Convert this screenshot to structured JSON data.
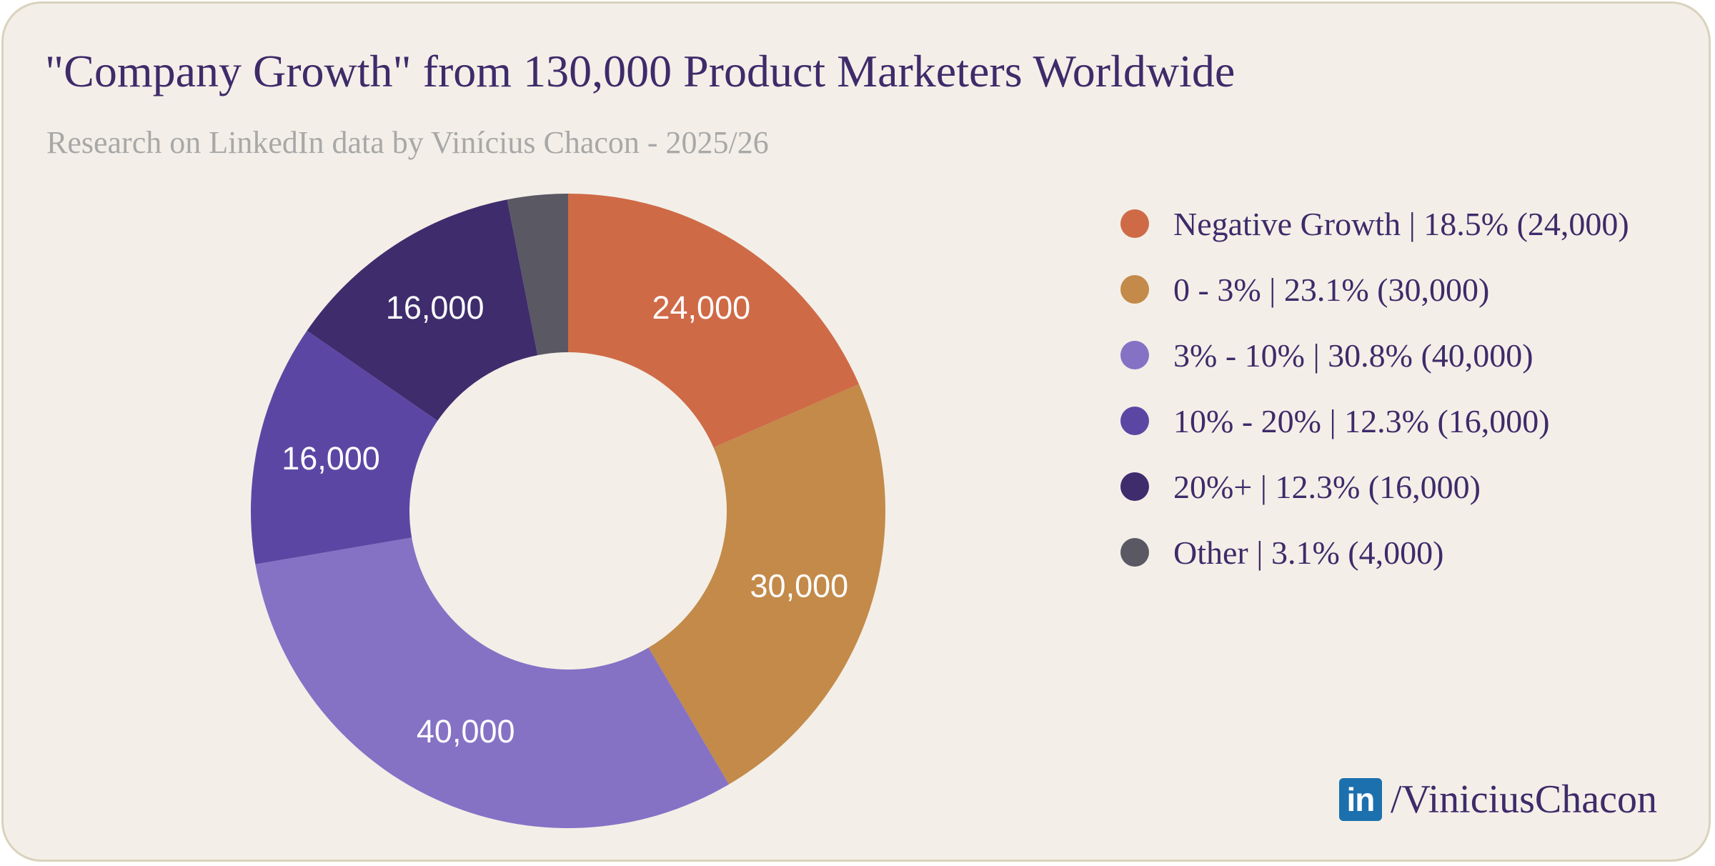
{
  "title": "\"Company Growth\" from 130,000 Product Marketers Worldwide",
  "subtitle": "Research on LinkedIn data by Vinícius Chacon - 2025/26",
  "chart_data": {
    "type": "pie",
    "donut": true,
    "total": 130000,
    "legend_position": "right",
    "slices": [
      {
        "label": "Negative Growth",
        "value": 24000,
        "percent": 18.5,
        "display": "24,000",
        "color": "#cf6a47",
        "legend": "Negative Growth | 18.5% (24,000)"
      },
      {
        "label": "0 - 3%",
        "value": 30000,
        "percent": 23.1,
        "display": "30,000",
        "color": "#c38a4a",
        "legend": "0 - 3% | 23.1% (30,000)"
      },
      {
        "label": "3% - 10%",
        "value": 40000,
        "percent": 30.8,
        "display": "40,000",
        "color": "#8572c5",
        "legend": "3% - 10% | 30.8% (40,000)"
      },
      {
        "label": "10% - 20%",
        "value": 16000,
        "percent": 12.3,
        "display": "16,000",
        "color": "#5b47a3",
        "legend": "10% - 20% | 12.3% (16,000)"
      },
      {
        "label": "20%+",
        "value": 16000,
        "percent": 12.3,
        "display": "16,000",
        "color": "#3e2c6d",
        "legend": "20%+ | 12.3% (16,000)"
      },
      {
        "label": "Other",
        "value": 4000,
        "percent": 3.1,
        "display": "",
        "color": "#5a5863",
        "legend": "Other | 3.1% (4,000)"
      }
    ]
  },
  "brand": {
    "icon": "linkedin-icon",
    "icon_text": "in",
    "handle": "/ViniciusChacon"
  }
}
